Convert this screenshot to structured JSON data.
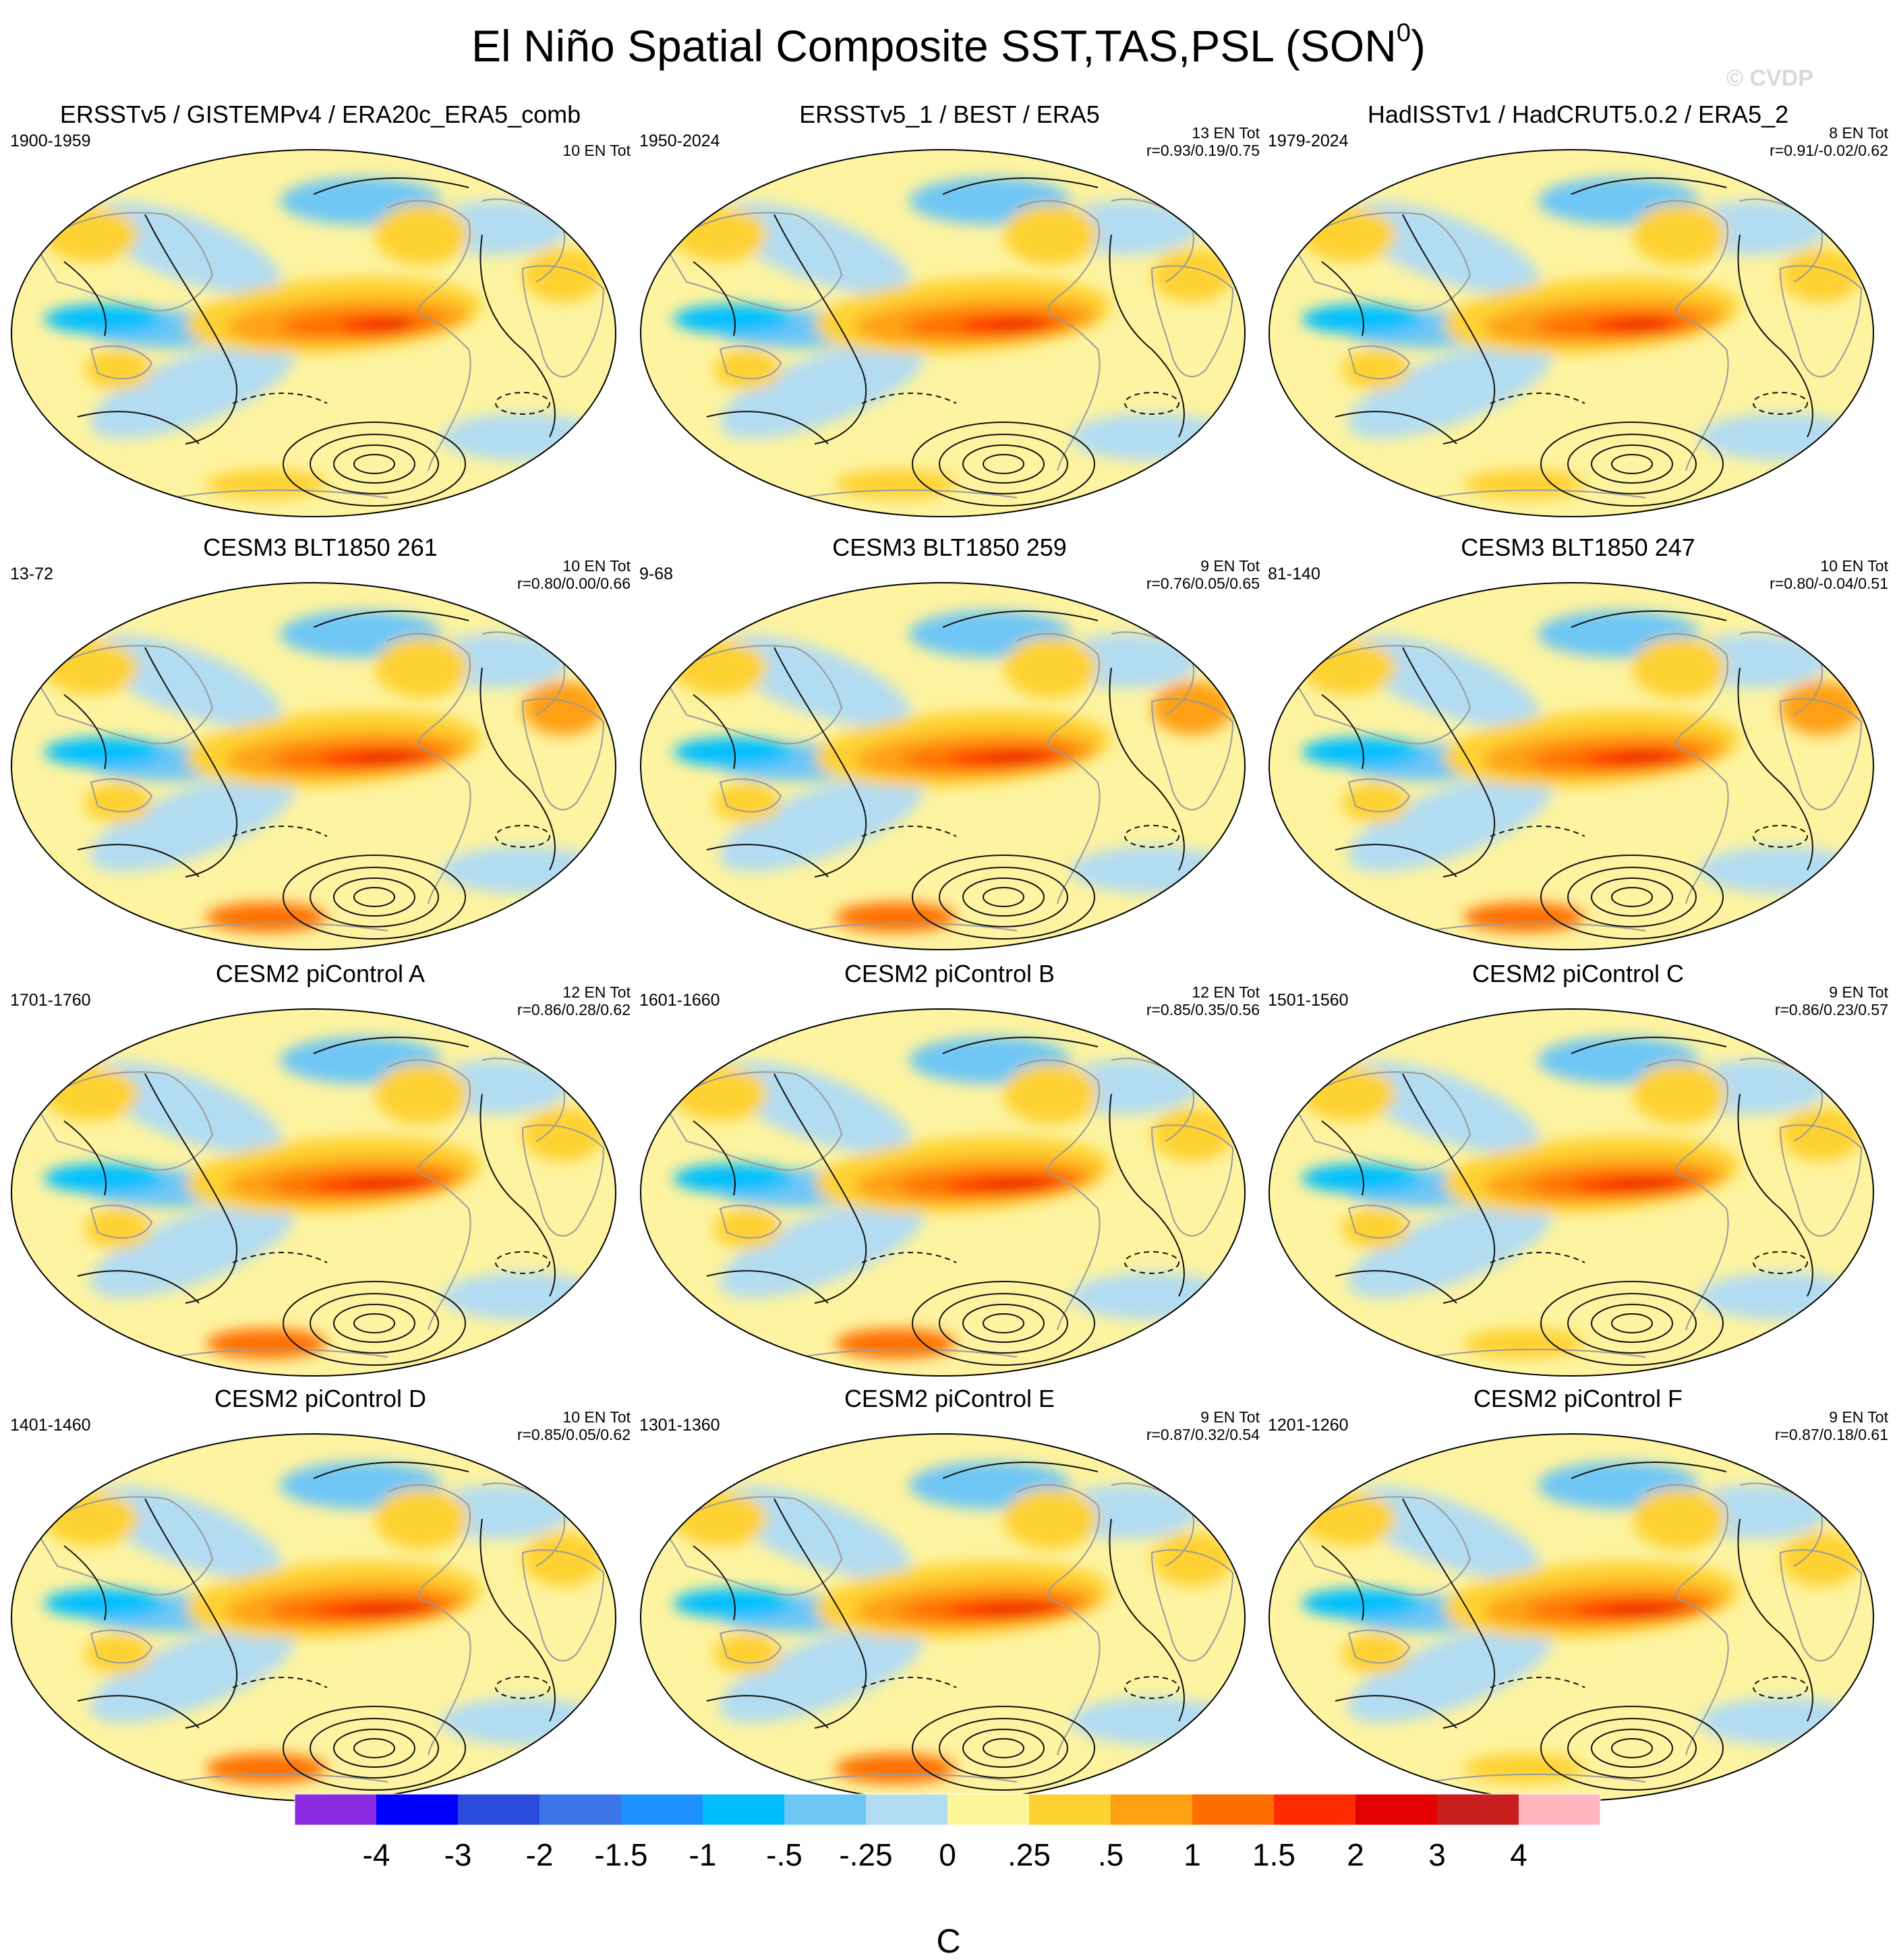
{
  "figure": {
    "title": "El Niño Spatial Composite SST,TAS,PSL (SON",
    "title_superscript": "0",
    "title_close": ")",
    "watermark": "© CVDP"
  },
  "colors": {
    "ocean_base": "#fdf3a0",
    "outline": "#000000",
    "coast": "#9a9a9a",
    "contour": "#111111"
  },
  "chart_data": {
    "type": "heatmap",
    "projection": "Robinson (global, Pacific-centered)",
    "variable": "SST / TAS composite anomaly (shaded) with PSL anomaly contours",
    "colorbar": {
      "unit": "C",
      "tick_labels": [
        "-4",
        "-3",
        "-2",
        "-1.5",
        "-1",
        "-.5",
        "-.25",
        "0",
        ".25",
        ".5",
        "1",
        "1.5",
        "2",
        "3",
        "4"
      ],
      "levels": [
        -4,
        -3,
        -2,
        -1.5,
        -1,
        -0.5,
        -0.25,
        0,
        0.25,
        0.5,
        1,
        1.5,
        2,
        3,
        4
      ],
      "colors": [
        "#8a2be2",
        "#0000ff",
        "#2b4bdd",
        "#3d75e6",
        "#1e90ff",
        "#00bfff",
        "#6ec6f5",
        "#b2dcf2",
        "#fef69a",
        "#fed230",
        "#fea012",
        "#ff6f00",
        "#ff2b00",
        "#e30000",
        "#c81e1e",
        "#ffb6c1"
      ]
    },
    "panels": [
      {
        "title": "ERSSTv5 / GISTEMPv4 / ERA20c_ERA5_comb",
        "years": "1900-1959",
        "count": "10 EN Tot",
        "corr": "",
        "nino_strength": 0.55,
        "extra_warm": 0.1
      },
      {
        "title": "ERSSTv5_1 / BEST / ERA5",
        "years": "1950-2024",
        "count": "13 EN Tot",
        "corr": "r=0.93/0.19/0.75",
        "nino_strength": 0.7,
        "extra_warm": 0.2
      },
      {
        "title": "HadISSTv1 / HadCRUT5.0.2 / ERA5_2",
        "years": "1979-2024",
        "count": "8 EN Tot",
        "corr": "r=0.91/-0.02/0.62",
        "nino_strength": 0.65,
        "extra_warm": 0.0
      },
      {
        "title": "CESM3 BLT1850 261",
        "years": "13-72",
        "count": "10 EN Tot",
        "corr": "r=0.80/0.00/0.66",
        "nino_strength": 0.85,
        "extra_warm": 0.5
      },
      {
        "title": "CESM3 BLT1850 259",
        "years": "9-68",
        "count": "9 EN Tot",
        "corr": "r=0.76/0.05/0.65",
        "nino_strength": 0.85,
        "extra_warm": 0.55
      },
      {
        "title": "CESM3 BLT1850 247",
        "years": "81-140",
        "count": "10 EN Tot",
        "corr": "r=0.80/-0.04/0.51",
        "nino_strength": 0.8,
        "extra_warm": 0.45
      },
      {
        "title": "CESM2 piControl A",
        "years": "1701-1760",
        "count": "12 EN Tot",
        "corr": "r=0.86/0.28/0.62",
        "nino_strength": 0.95,
        "extra_warm": 0.35
      },
      {
        "title": "CESM2 piControl B",
        "years": "1601-1660",
        "count": "12 EN Tot",
        "corr": "r=0.85/0.35/0.56",
        "nino_strength": 0.9,
        "extra_warm": 0.4
      },
      {
        "title": "CESM2 piControl C",
        "years": "1501-1560",
        "count": "9 EN Tot",
        "corr": "r=0.86/0.23/0.57",
        "nino_strength": 0.9,
        "extra_warm": 0.3
      },
      {
        "title": "CESM2 piControl D",
        "years": "1401-1460",
        "count": "10 EN Tot",
        "corr": "r=0.85/0.05/0.62",
        "nino_strength": 0.95,
        "extra_warm": 0.35
      },
      {
        "title": "CESM2 piControl E",
        "years": "1301-1360",
        "count": "9 EN Tot",
        "corr": "r=0.87/0.32/0.54",
        "nino_strength": 0.9,
        "extra_warm": 0.4
      },
      {
        "title": "CESM2 piControl F",
        "years": "1201-1260",
        "count": "9 EN Tot",
        "corr": "r=0.87/0.18/0.61",
        "nino_strength": 0.9,
        "extra_warm": 0.3
      }
    ]
  }
}
